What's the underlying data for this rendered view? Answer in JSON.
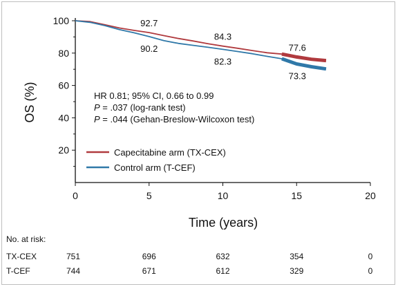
{
  "chart_data": {
    "type": "line",
    "xlabel": "Time (years)",
    "ylabel": "OS (%)",
    "xlim": [
      0,
      20
    ],
    "ylim": [
      0,
      100
    ],
    "x_ticks": [
      0,
      5,
      10,
      15,
      20
    ],
    "y_ticks": [
      20,
      40,
      60,
      80,
      100
    ],
    "grid": false,
    "legend_position": "lower-left",
    "series": [
      {
        "name": "Capecitabine arm (TX-CEX)",
        "color": "#b03a3e",
        "x": [
          0,
          1,
          2,
          3,
          4,
          5,
          6,
          7,
          8,
          9,
          10,
          11,
          12,
          13,
          14,
          15,
          16,
          17
        ],
        "y": [
          100,
          99.5,
          97.5,
          95.5,
          94,
          92.7,
          90.8,
          89,
          87.5,
          85.8,
          84.3,
          83,
          81.6,
          80.2,
          79.4,
          77.6,
          76.2,
          75.4
        ]
      },
      {
        "name": "Control arm (T-CEF)",
        "color": "#2f78a8",
        "x": [
          0,
          1,
          2,
          3,
          4,
          5,
          6,
          7,
          8,
          9,
          10,
          11,
          12,
          13,
          14,
          15,
          16,
          17
        ],
        "y": [
          100,
          99,
          97,
          94.5,
          92.5,
          90.2,
          87.7,
          86,
          84.8,
          83.6,
          82.3,
          81,
          79.6,
          78,
          76.5,
          73.3,
          71.6,
          70.2
        ]
      }
    ],
    "point_labels": [
      {
        "text": "92.7",
        "x": 5,
        "y": 92.7
      },
      {
        "text": "84.3",
        "x": 10,
        "y": 84.3
      },
      {
        "text": "77.6",
        "x": 15,
        "y": 77.6
      },
      {
        "text": "90.2",
        "x": 5,
        "y": 90.2
      },
      {
        "text": "82.3",
        "x": 10,
        "y": 82.3
      },
      {
        "text": "73.3",
        "x": 15,
        "y": 73.3
      }
    ],
    "annotations": {
      "hr": "HR 0.81; 95% CI, 0.66 to 0.99",
      "p1_label": "P",
      "p1_value": " = .037 (log-rank test)",
      "p2_label": "P",
      "p2_value": " = .044 (Gehan-Breslow-Wilcoxon test)"
    },
    "risk_table": {
      "title": "No. at risk:",
      "columns": [
        0,
        5,
        10,
        15,
        20
      ],
      "rows": [
        {
          "label": "TX-CEX",
          "values": [
            "751",
            "696",
            "632",
            "354",
            "0"
          ]
        },
        {
          "label": "T-CEF",
          "values": [
            "744",
            "671",
            "612",
            "329",
            "0"
          ]
        }
      ]
    }
  }
}
